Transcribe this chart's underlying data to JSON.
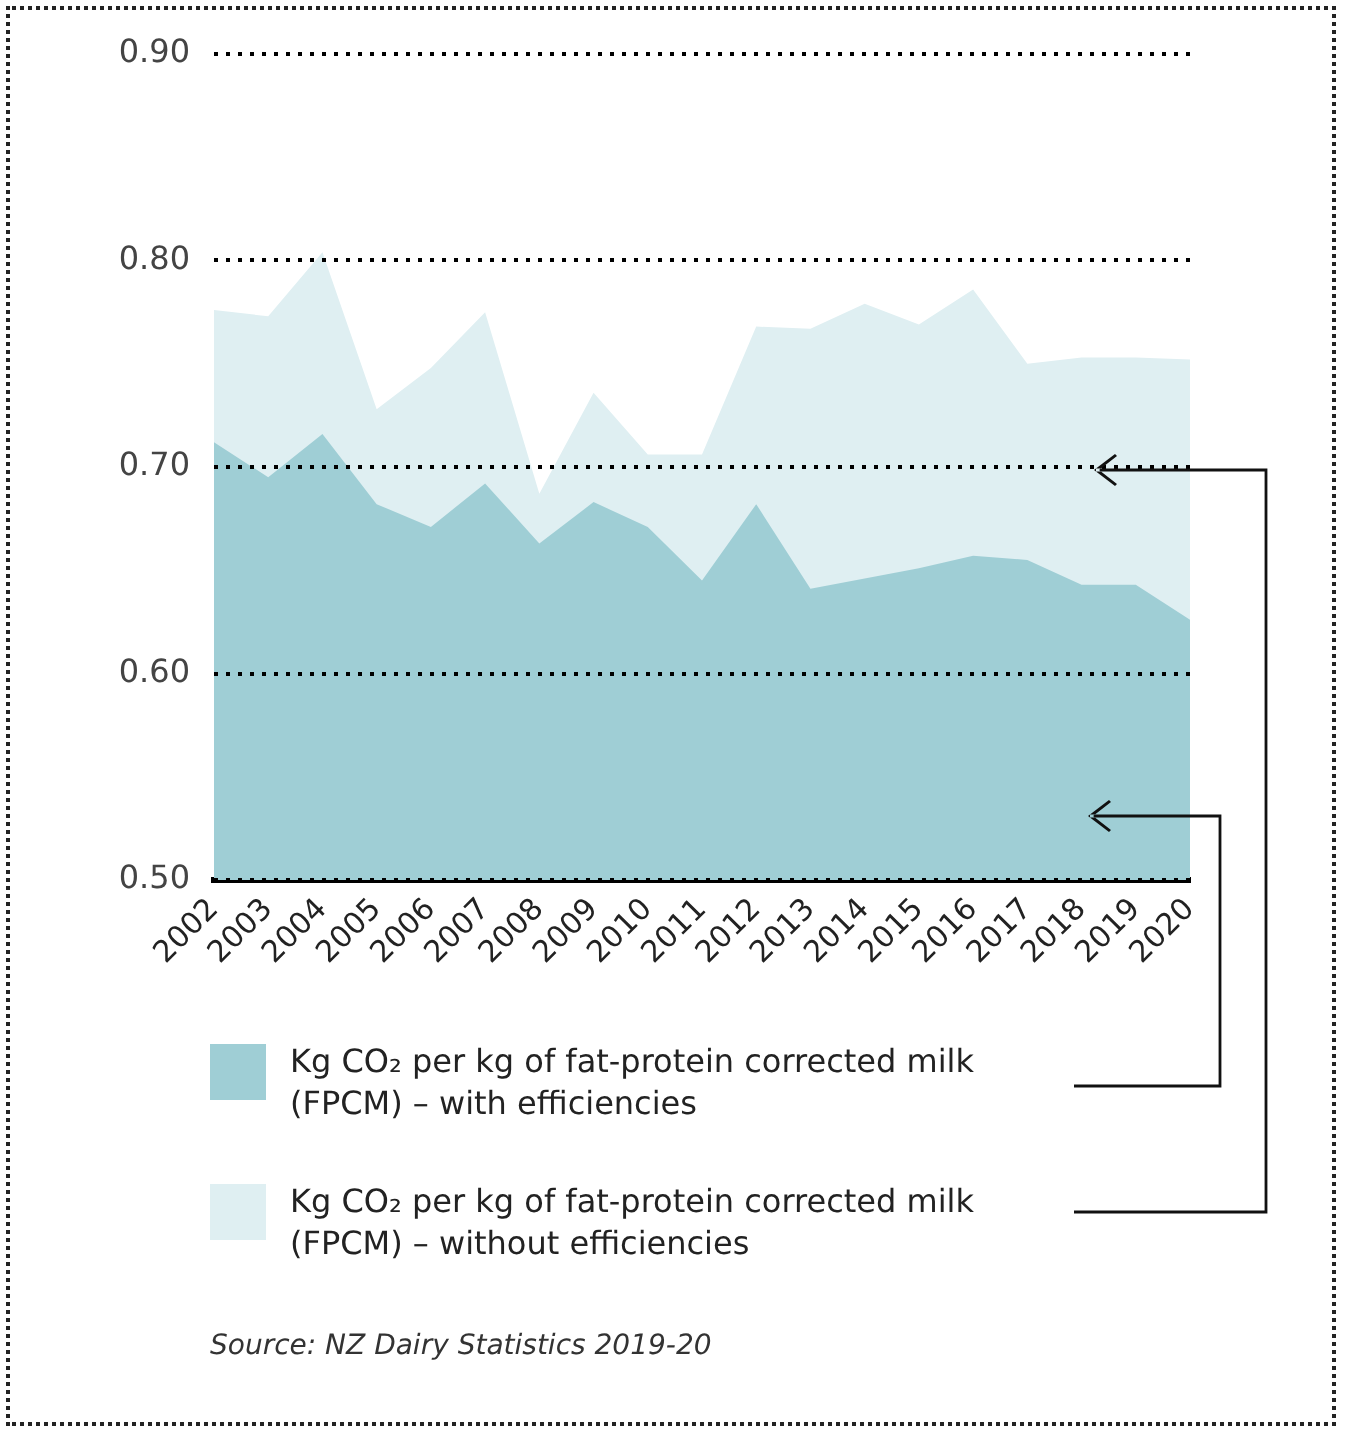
{
  "chart_data": {
    "type": "area",
    "categories": [
      "2002",
      "2003",
      "2004",
      "2005",
      "2006",
      "2007",
      "2008",
      "2009",
      "2010",
      "2011",
      "2012",
      "2013",
      "2014",
      "2015",
      "2016",
      "2017",
      "2018",
      "2019",
      "2020"
    ],
    "series": [
      {
        "name": "Kg CO₂ per kg of fat-protein corrected milk (FPCM) – with efficiencies",
        "color": "#9fced5",
        "values": [
          0.712,
          0.695,
          0.716,
          0.682,
          0.671,
          0.692,
          0.663,
          0.683,
          0.671,
          0.645,
          0.682,
          0.641,
          0.646,
          0.651,
          0.657,
          0.655,
          0.643,
          0.643,
          0.626
        ]
      },
      {
        "name": "Kg CO₂ per kg of fat-protein corrected milk (FPCM) – without efficiencies",
        "color": "#dfeff2",
        "values": [
          0.776,
          0.773,
          0.804,
          0.728,
          0.748,
          0.775,
          0.687,
          0.736,
          0.706,
          0.706,
          0.768,
          0.767,
          0.779,
          0.769,
          0.786,
          0.75,
          0.753,
          0.753,
          0.752
        ]
      }
    ],
    "ylim": [
      0.5,
      0.9
    ],
    "yticks": [
      {
        "value": 0.5,
        "label": "0.50"
      },
      {
        "value": 0.6,
        "label": "0.60"
      },
      {
        "value": 0.7,
        "label": "0.70"
      },
      {
        "value": 0.8,
        "label": "0.80"
      },
      {
        "value": 0.9,
        "label": "0.90"
      }
    ],
    "grid": "y",
    "legend": "bottom",
    "annotations": [
      "Source: NZ Dairy Statistics 2019-20"
    ]
  }
}
